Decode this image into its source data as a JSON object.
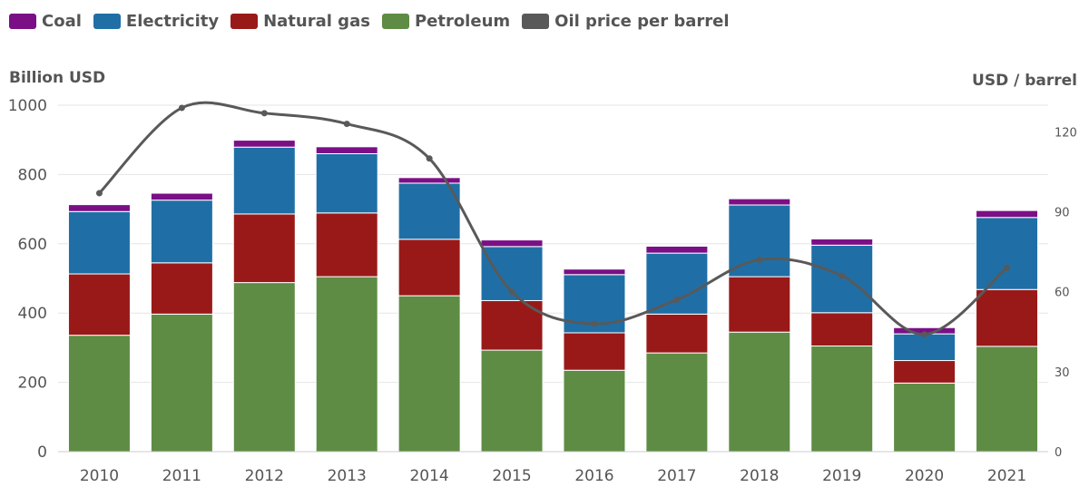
{
  "legend": [
    {
      "name": "Coal",
      "color": "#7b0f86"
    },
    {
      "name": "Electricity",
      "color": "#1f6fa6"
    },
    {
      "name": "Natural gas",
      "color": "#991919"
    },
    {
      "name": "Petroleum",
      "color": "#5e8c44"
    },
    {
      "name": "Oil price per barrel",
      "color": "#595959"
    }
  ],
  "chart_data": {
    "type": "bar",
    "stacked": true,
    "ylabel": "Billion USD",
    "y2label": "USD / barrel",
    "ylim": [
      0,
      1000
    ],
    "y2lim": [
      0,
      130
    ],
    "yticks": [
      0,
      200,
      400,
      600,
      800,
      1000
    ],
    "y2ticks": [
      0,
      30,
      60,
      90,
      120
    ],
    "grid": true,
    "legend_position": "top-left",
    "categories": [
      "2010",
      "2011",
      "2012",
      "2013",
      "2014",
      "2015",
      "2016",
      "2017",
      "2018",
      "2019",
      "2020",
      "2021"
    ],
    "series": [
      {
        "name": "Petroleum",
        "color": "#5e8c44",
        "values": [
          336,
          397,
          488,
          505,
          450,
          293,
          235,
          285,
          345,
          305,
          198,
          304
        ]
      },
      {
        "name": "Natural gas",
        "color": "#991919",
        "values": [
          177,
          148,
          198,
          184,
          163,
          143,
          108,
          112,
          160,
          96,
          65,
          164
        ]
      },
      {
        "name": "Electricity",
        "color": "#1f6fa6",
        "values": [
          180,
          181,
          193,
          171,
          162,
          156,
          168,
          176,
          207,
          195,
          77,
          208
        ]
      },
      {
        "name": "Coal",
        "color": "#7b0f86",
        "values": [
          20,
          20,
          20,
          20,
          16,
          19,
          16,
          20,
          18,
          18,
          18,
          20
        ]
      }
    ],
    "line_series": {
      "name": "Oil price per barrel",
      "color": "#595959",
      "axis": "right",
      "values": [
        97,
        129,
        127,
        123,
        110,
        60,
        48,
        57,
        72,
        66,
        44,
        69
      ]
    }
  }
}
